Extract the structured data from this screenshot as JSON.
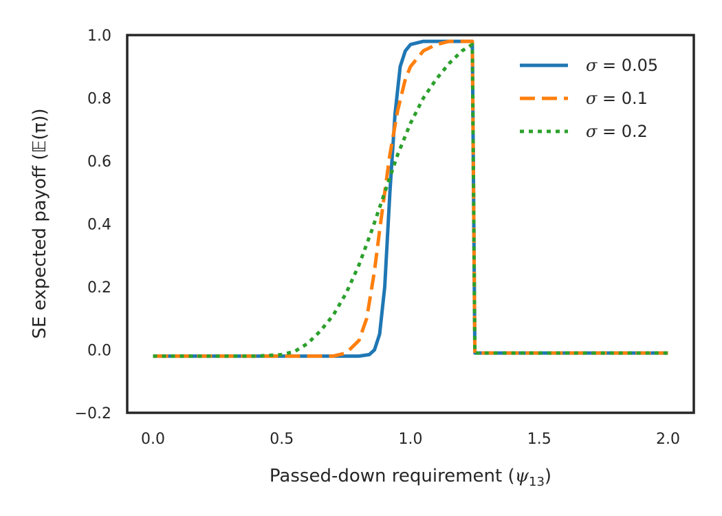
{
  "chart_data": {
    "type": "line",
    "title": "",
    "xlabel": "Passed-down requirement (ψ13)",
    "xlabel_main": "Passed-down requirement (",
    "xlabel_symbol": "ψ",
    "xlabel_subscript": "13",
    "xlabel_close": ")",
    "ylabel": "SE expected payoff (𝔼(π))",
    "xlim": [
      -0.1,
      2.1
    ],
    "ylim": [
      -0.2,
      1.0
    ],
    "xticks": [
      0.0,
      0.5,
      1.0,
      1.5,
      2.0
    ],
    "xtick_labels": [
      "0.0",
      "0.5",
      "1.0",
      "1.5",
      "2.0"
    ],
    "yticks": [
      -0.2,
      0.0,
      0.2,
      0.4,
      0.6,
      0.8,
      1.0
    ],
    "ytick_labels": [
      "−0.2",
      "0.0",
      "0.2",
      "0.4",
      "0.6",
      "0.8",
      "1.0"
    ],
    "grid": false,
    "legend_position": "top-right",
    "series": [
      {
        "name": "σ = 0.05",
        "legend_symbol": "σ",
        "legend_value": " = 0.05",
        "color": "#1f77b4",
        "dash": "solid",
        "x": [
          0.0,
          0.5,
          0.8,
          0.84,
          0.86,
          0.88,
          0.9,
          0.92,
          0.94,
          0.96,
          0.98,
          1.0,
          1.05,
          1.1,
          1.15,
          1.2,
          1.24,
          1.25,
          1.3,
          1.5,
          2.0
        ],
        "y": [
          -0.02,
          -0.02,
          -0.02,
          -0.015,
          0.0,
          0.05,
          0.2,
          0.5,
          0.75,
          0.9,
          0.95,
          0.97,
          0.98,
          0.98,
          0.98,
          0.98,
          0.98,
          -0.01,
          -0.01,
          -0.01,
          -0.01
        ]
      },
      {
        "name": "σ = 0.1",
        "legend_symbol": "σ",
        "legend_value": " = 0.1",
        "color": "#ff7f0e",
        "dash": "dashed",
        "x": [
          0.0,
          0.5,
          0.7,
          0.75,
          0.8,
          0.83,
          0.86,
          0.88,
          0.9,
          0.92,
          0.95,
          0.98,
          1.0,
          1.05,
          1.1,
          1.15,
          1.2,
          1.24,
          1.25,
          1.3,
          1.5,
          2.0
        ],
        "y": [
          -0.02,
          -0.02,
          -0.02,
          -0.01,
          0.03,
          0.1,
          0.25,
          0.38,
          0.5,
          0.62,
          0.76,
          0.86,
          0.9,
          0.95,
          0.97,
          0.98,
          0.98,
          0.98,
          -0.01,
          -0.01,
          -0.01,
          -0.01
        ]
      },
      {
        "name": "σ = 0.2",
        "legend_symbol": "σ",
        "legend_value": " = 0.2",
        "color": "#2ca02c",
        "dash": "dotted",
        "x": [
          0.0,
          0.4,
          0.5,
          0.55,
          0.6,
          0.65,
          0.7,
          0.75,
          0.8,
          0.85,
          0.9,
          0.95,
          1.0,
          1.05,
          1.1,
          1.15,
          1.2,
          1.24,
          1.25,
          1.3,
          1.5,
          2.0
        ],
        "y": [
          -0.02,
          -0.02,
          -0.015,
          -0.005,
          0.02,
          0.06,
          0.11,
          0.18,
          0.27,
          0.38,
          0.5,
          0.62,
          0.72,
          0.8,
          0.86,
          0.91,
          0.95,
          0.97,
          -0.01,
          -0.01,
          -0.01,
          -0.01
        ]
      }
    ]
  }
}
